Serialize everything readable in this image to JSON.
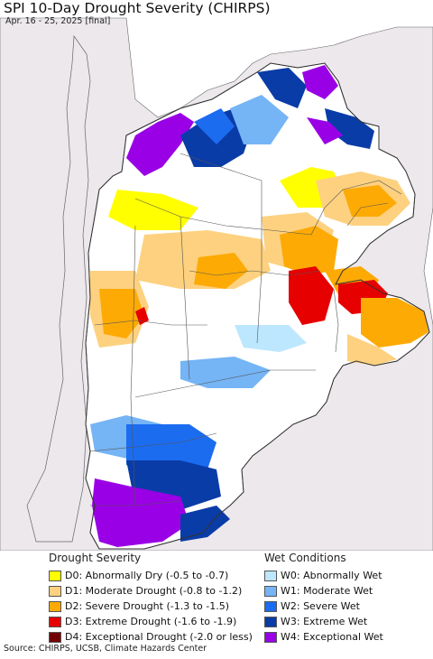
{
  "header": {
    "title": "SPI 10-Day Drought Severity (CHIRPS)",
    "subtitle": "Apr. 16 - 25, 2025 [final]"
  },
  "colors": {
    "ocean": "#ffffff",
    "outside_land": "#ece8ec",
    "border": "#555555",
    "d0": "#ffff00",
    "d1": "#fdd17f",
    "d2": "#fdaa05",
    "d3": "#e60000",
    "d4": "#730000",
    "w0": "#bde7fe",
    "w1": "#75b4f5",
    "w2": "#1c6cf0",
    "w3": "#0a3ca8",
    "w4": "#9a00e6"
  },
  "legend": {
    "drought": {
      "title": "Drought Severity",
      "items": [
        {
          "label": "D0: Abnormally Dry (-0.5 to -0.7)",
          "color": "#ffff00"
        },
        {
          "label": "D1: Moderate Drought (-0.8 to -1.2)",
          "color": "#fdd17f"
        },
        {
          "label": "D2: Severe Drought (-1.3 to -1.5)",
          "color": "#fdaa05"
        },
        {
          "label": "D3: Extreme Drought (-1.6 to -1.9)",
          "color": "#e60000"
        },
        {
          "label": "D4: Exceptional Drought (-2.0 or less)",
          "color": "#730000"
        }
      ]
    },
    "wet": {
      "title": "Wet Conditions",
      "items": [
        {
          "label": "W0: Abnormally Wet",
          "color": "#bde7fe"
        },
        {
          "label": "W1: Moderate Wet",
          "color": "#75b4f5"
        },
        {
          "label": "W2: Severe Wet",
          "color": "#1c6cf0"
        },
        {
          "label": "W3: Extreme Wet",
          "color": "#0a3ca8"
        },
        {
          "label": "W4: Exceptional Wet",
          "color": "#9a00e6"
        }
      ]
    }
  },
  "source": "Source: CHIRPS, UCSB, Climate Hazards Center"
}
